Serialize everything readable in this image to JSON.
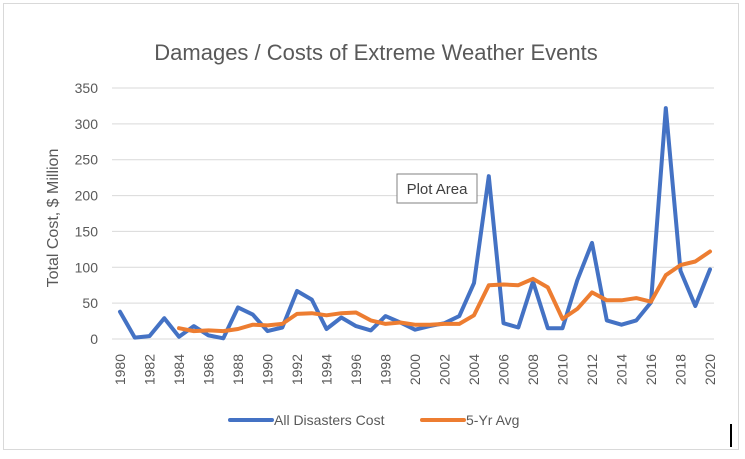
{
  "chart_data": {
    "type": "line",
    "title": "Damages / Costs of Extreme Weather Events",
    "xlabel": "",
    "ylabel": "Total Cost, $ Million",
    "ylim": [
      0,
      350
    ],
    "yticks": [
      0,
      50,
      100,
      150,
      200,
      250,
      300,
      350
    ],
    "xticks": [
      1980,
      1982,
      1984,
      1986,
      1988,
      1990,
      1992,
      1994,
      1996,
      1998,
      2000,
      2002,
      2004,
      2006,
      2008,
      2010,
      2012,
      2014,
      2016,
      2018,
      2020
    ],
    "grid": true,
    "legend": "bottom",
    "series": [
      {
        "name": "All Disasters Cost",
        "color": "#4472c4",
        "points": [
          [
            1980,
            38
          ],
          [
            1981,
            2
          ],
          [
            1982,
            4
          ],
          [
            1983,
            29
          ],
          [
            1984,
            3
          ],
          [
            1985,
            18
          ],
          [
            1986,
            5
          ],
          [
            1987,
            1
          ],
          [
            1988,
            44
          ],
          [
            1989,
            34
          ],
          [
            1990,
            11
          ],
          [
            1991,
            16
          ],
          [
            1992,
            67
          ],
          [
            1993,
            55
          ],
          [
            1994,
            14
          ],
          [
            1995,
            30
          ],
          [
            1996,
            18
          ],
          [
            1997,
            12
          ],
          [
            1998,
            32
          ],
          [
            1999,
            23
          ],
          [
            2000,
            13
          ],
          [
            2001,
            18
          ],
          [
            2002,
            22
          ],
          [
            2003,
            32
          ],
          [
            2004,
            78
          ],
          [
            2005,
            227
          ],
          [
            2006,
            22
          ],
          [
            2007,
            16
          ],
          [
            2008,
            80
          ],
          [
            2009,
            15
          ],
          [
            2010,
            15
          ],
          [
            2011,
            82
          ],
          [
            2012,
            134
          ],
          [
            2013,
            26
          ],
          [
            2014,
            20
          ],
          [
            2015,
            26
          ],
          [
            2016,
            51
          ],
          [
            2017,
            322
          ],
          [
            2018,
            95
          ],
          [
            2019,
            46
          ],
          [
            2020,
            97
          ]
        ]
      },
      {
        "name": "5-Yr Avg",
        "color": "#ed7d31",
        "points": [
          [
            1984,
            15
          ],
          [
            1985,
            11
          ],
          [
            1986,
            12
          ],
          [
            1987,
            11
          ],
          [
            1988,
            14
          ],
          [
            1989,
            20
          ],
          [
            1990,
            19
          ],
          [
            1991,
            21
          ],
          [
            1992,
            35
          ],
          [
            1993,
            36
          ],
          [
            1994,
            33
          ],
          [
            1995,
            36
          ],
          [
            1996,
            37
          ],
          [
            1997,
            26
          ],
          [
            1998,
            21
          ],
          [
            1999,
            23
          ],
          [
            2000,
            20
          ],
          [
            2001,
            20
          ],
          [
            2002,
            21
          ],
          [
            2003,
            21
          ],
          [
            2004,
            33
          ],
          [
            2005,
            75
          ],
          [
            2006,
            76
          ],
          [
            2007,
            75
          ],
          [
            2008,
            84
          ],
          [
            2009,
            72
          ],
          [
            2010,
            28
          ],
          [
            2011,
            42
          ],
          [
            2012,
            65
          ],
          [
            2013,
            54
          ],
          [
            2014,
            54
          ],
          [
            2015,
            57
          ],
          [
            2016,
            52
          ],
          [
            2017,
            89
          ],
          [
            2018,
            103
          ],
          [
            2019,
            108
          ],
          [
            2020,
            122
          ]
        ]
      }
    ],
    "annotation": {
      "text": "Plot Area"
    }
  }
}
